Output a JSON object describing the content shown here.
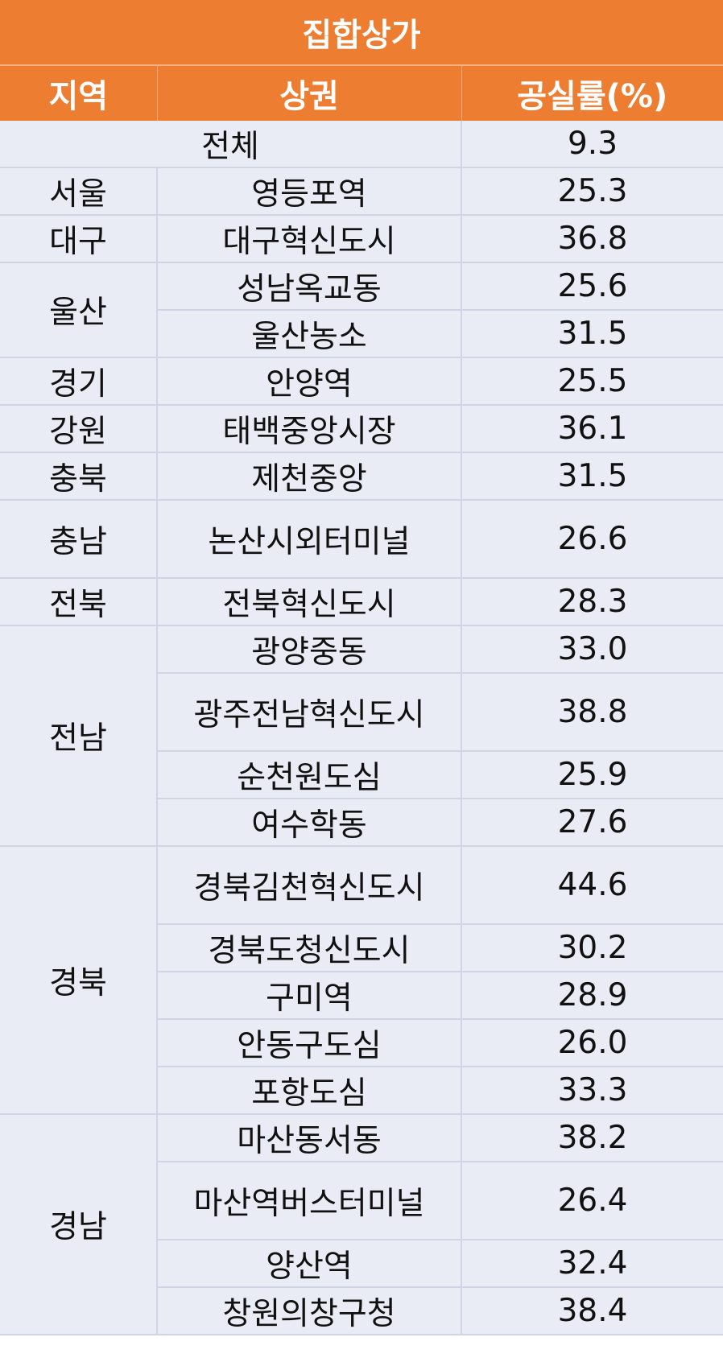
{
  "title": "집합상가",
  "headers": [
    "지역",
    "상권",
    "공실률(%)"
  ],
  "total": {
    "label": "전체",
    "value": "9.3"
  },
  "groups": [
    {
      "region": "서울",
      "rows": [
        {
          "area": "영등포역",
          "value": "25.3"
        }
      ]
    },
    {
      "region": "대구",
      "rows": [
        {
          "area": "대구혁신도시",
          "value": "36.8"
        }
      ]
    },
    {
      "region": "울산",
      "rows": [
        {
          "area": "성남옥교동",
          "value": "25.6"
        },
        {
          "area": "울산농소",
          "value": "31.5"
        }
      ]
    },
    {
      "region": "경기",
      "rows": [
        {
          "area": "안양역",
          "value": "25.5"
        }
      ]
    },
    {
      "region": "강원",
      "rows": [
        {
          "area": "태백중앙시장",
          "value": "36.1"
        }
      ]
    },
    {
      "region": "충북",
      "rows": [
        {
          "area": "제천중앙",
          "value": "31.5"
        }
      ]
    },
    {
      "region": "충남",
      "rows": [
        {
          "area": "논산시외터미널",
          "value": "26.6",
          "tall": true
        }
      ]
    },
    {
      "region": "전북",
      "rows": [
        {
          "area": "전북혁신도시",
          "value": "28.3"
        }
      ]
    },
    {
      "region": "전남",
      "rows": [
        {
          "area": "광양중동",
          "value": "33.0"
        },
        {
          "area": "광주전남혁신도시",
          "value": "38.8",
          "tall": true
        },
        {
          "area": "순천원도심",
          "value": "25.9"
        },
        {
          "area": "여수학동",
          "value": "27.6"
        }
      ]
    },
    {
      "region": "경북",
      "rows": [
        {
          "area": "경북김천혁신도시",
          "value": "44.6",
          "tall": true
        },
        {
          "area": "경북도청신도시",
          "value": "30.2"
        },
        {
          "area": "구미역",
          "value": "28.9"
        },
        {
          "area": "안동구도심",
          "value": "26.0"
        },
        {
          "area": "포항도심",
          "value": "33.3"
        }
      ]
    },
    {
      "region": "경남",
      "rows": [
        {
          "area": "마산동서동",
          "value": "38.2"
        },
        {
          "area": "마산역버스터미널",
          "value": "26.4",
          "tall": true
        },
        {
          "area": "양산역",
          "value": "32.4"
        },
        {
          "area": "창원의창구청",
          "value": "38.4"
        }
      ]
    }
  ],
  "colors": {
    "header": "#ED7D31",
    "body": "#E9EBF5",
    "grid": "#D0D5E6"
  }
}
